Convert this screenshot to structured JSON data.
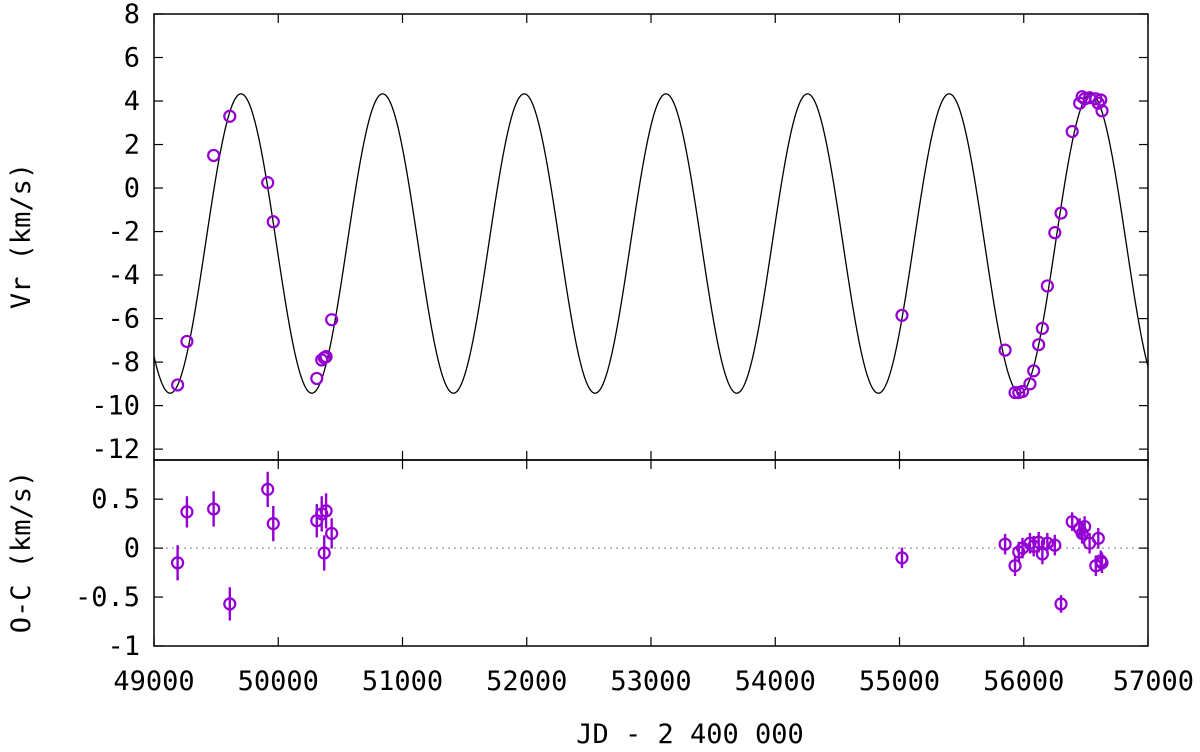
{
  "chart_data": [
    {
      "type": "scatter",
      "panel": "top",
      "title": "",
      "xlabel": "",
      "ylabel": "Vr (km/s)",
      "xlim": [
        49000,
        57000
      ],
      "ylim": [
        -12.5,
        8
      ],
      "yticks": [
        8,
        6,
        4,
        2,
        0,
        -2,
        -4,
        -6,
        -8,
        -10,
        -12
      ],
      "ytick_labels": [
        "8",
        "6",
        "4",
        "2",
        "0",
        "-2",
        "-4",
        "-6",
        "-8",
        "-10",
        "-12"
      ],
      "grid": false,
      "colors": {
        "points": "#9400d3",
        "model": "#000000"
      },
      "model_curve": {
        "shape": "sinusoid",
        "period_days": 1140,
        "max_epoch_jd": 49700,
        "gamma_kms": -2.55,
        "semi_amplitude_kms": 6.88
      },
      "series": [
        {
          "points": [
            [
              49190,
              -9.05
            ],
            [
              49265,
              -7.05
            ],
            [
              49480,
              1.5
            ],
            [
              49610,
              3.3
            ],
            [
              49915,
              0.25
            ],
            [
              49960,
              -1.55
            ],
            [
              50310,
              -8.75
            ],
            [
              50350,
              -7.9
            ],
            [
              50370,
              -7.8
            ],
            [
              50385,
              -7.75
            ],
            [
              50430,
              -6.05
            ],
            [
              55020,
              -5.85
            ],
            [
              55850,
              -7.45
            ],
            [
              55930,
              -9.4
            ],
            [
              55960,
              -9.4
            ],
            [
              55990,
              -9.35
            ],
            [
              56050,
              -9.0
            ],
            [
              56080,
              -8.4
            ],
            [
              56120,
              -7.2
            ],
            [
              56150,
              -6.45
            ],
            [
              56190,
              -4.5
            ],
            [
              56250,
              -2.05
            ],
            [
              56300,
              -1.15
            ],
            [
              56390,
              2.6
            ],
            [
              56450,
              3.9
            ],
            [
              56470,
              4.2
            ],
            [
              56490,
              4.1
            ],
            [
              56530,
              4.15
            ],
            [
              56580,
              4.1
            ],
            [
              56600,
              3.9
            ],
            [
              56620,
              4.05
            ],
            [
              56630,
              3.55
            ]
          ]
        }
      ]
    },
    {
      "type": "scatter",
      "panel": "bottom",
      "title": "",
      "xlabel": "JD - 2 400 000",
      "ylabel": "O-C (km/s)",
      "xlim": [
        49000,
        57000
      ],
      "ylim": [
        -1,
        0.9
      ],
      "xticks": [
        49000,
        50000,
        51000,
        52000,
        53000,
        54000,
        55000,
        56000,
        57000
      ],
      "xtick_labels": [
        "49000",
        "50000",
        "51000",
        "52000",
        "53000",
        "54000",
        "55000",
        "56000",
        "57000"
      ],
      "yticks": [
        0.5,
        0,
        -0.5,
        -1
      ],
      "ytick_labels": [
        "0.5",
        "0",
        "-0.5",
        "-1"
      ],
      "reference_line": 0,
      "grid": false,
      "colors": {
        "points": "#9400d3",
        "reference": "#999999"
      },
      "series": [
        {
          "points": [
            [
              49190,
              -0.15,
              0.3
            ],
            [
              49265,
              0.37,
              0.26
            ],
            [
              49480,
              0.4,
              0.3
            ],
            [
              49610,
              -0.57,
              0.28
            ],
            [
              49915,
              0.6,
              0.3
            ],
            [
              49960,
              0.25,
              0.3
            ],
            [
              50310,
              0.28,
              0.28
            ],
            [
              50350,
              0.35,
              0.3
            ],
            [
              50370,
              -0.05,
              0.3
            ],
            [
              50385,
              0.38,
              0.3
            ],
            [
              50430,
              0.15,
              0.25
            ],
            [
              55020,
              -0.1,
              0.15
            ],
            [
              55850,
              0.04,
              0.15
            ],
            [
              55930,
              -0.18,
              0.15
            ],
            [
              55960,
              -0.04,
              0.15
            ],
            [
              55990,
              0.0,
              0.15
            ],
            [
              56050,
              0.05,
              0.15
            ],
            [
              56080,
              0.02,
              0.15
            ],
            [
              56120,
              0.06,
              0.15
            ],
            [
              56150,
              -0.06,
              0.15
            ],
            [
              56190,
              0.05,
              0.15
            ],
            [
              56250,
              0.03,
              0.15
            ],
            [
              56300,
              -0.57,
              0.12
            ],
            [
              56390,
              0.27,
              0.13
            ],
            [
              56450,
              0.2,
              0.15
            ],
            [
              56470,
              0.15,
              0.15
            ],
            [
              56490,
              0.22,
              0.15
            ],
            [
              56530,
              0.05,
              0.15
            ],
            [
              56580,
              -0.18,
              0.15
            ],
            [
              56600,
              0.1,
              0.15
            ],
            [
              56620,
              -0.13,
              0.15
            ],
            [
              56630,
              -0.15,
              0.15
            ]
          ]
        }
      ]
    }
  ]
}
